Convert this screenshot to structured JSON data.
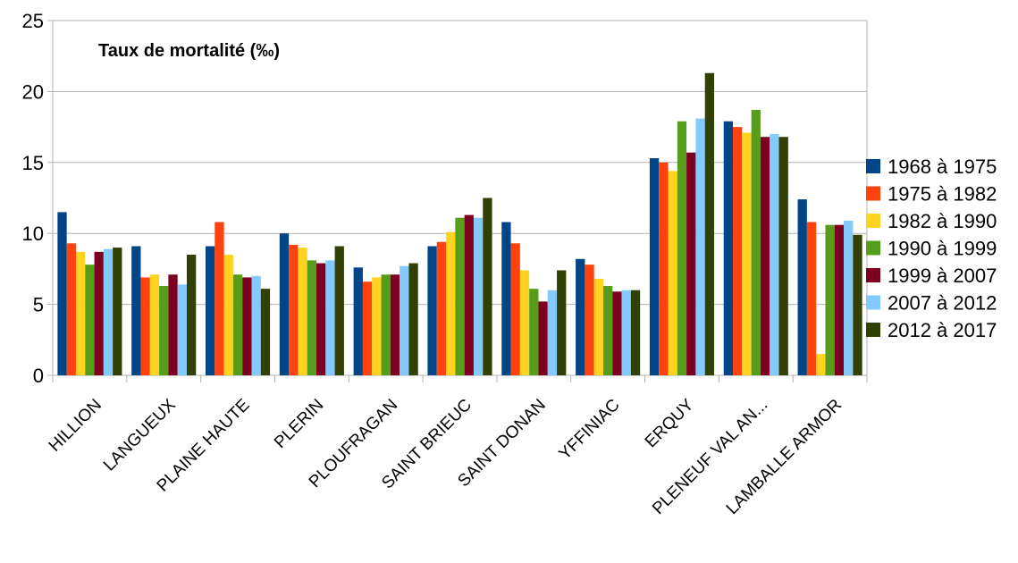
{
  "chart_data": {
    "type": "bar",
    "title": "Taux de mortalité (‰)",
    "xlabel": "",
    "ylabel": "",
    "ylim": [
      0,
      25
    ],
    "yticks": [
      0,
      5,
      10,
      15,
      20,
      25
    ],
    "grid": true,
    "legend_position": "right",
    "categories": [
      "HILLION",
      "LANGUEUX",
      "PLAINE HAUTE",
      "PLERIN",
      "PLOUFRAGAN",
      "SAINT BRIEUC",
      "SAINT DONAN",
      "YFFINIAC",
      "ERQUY",
      "PLENEUF VAL AN...",
      "LAMBALLE ARMOR"
    ],
    "series": [
      {
        "name": "1968 à 1975",
        "color": "#004586",
        "values": [
          11.5,
          9.1,
          9.1,
          10.0,
          7.6,
          9.1,
          10.8,
          8.2,
          15.3,
          17.9,
          12.4
        ]
      },
      {
        "name": "1975 à 1982",
        "color": "#ff420e",
        "values": [
          9.3,
          6.9,
          10.8,
          9.2,
          6.6,
          9.4,
          9.3,
          7.8,
          15.0,
          17.5,
          10.8
        ]
      },
      {
        "name": "1982 à 1990",
        "color": "#ffd320",
        "values": [
          8.7,
          7.1,
          8.5,
          9.0,
          6.9,
          10.1,
          7.4,
          6.8,
          14.4,
          17.1,
          1.5
        ]
      },
      {
        "name": "1990 à 1999",
        "color": "#579d1c",
        "values": [
          7.8,
          6.3,
          7.1,
          8.1,
          7.1,
          11.1,
          6.1,
          6.3,
          17.9,
          18.7,
          10.6
        ]
      },
      {
        "name": "1999 à 2007",
        "color": "#7e0021",
        "values": [
          8.7,
          7.1,
          6.9,
          7.9,
          7.1,
          11.3,
          5.2,
          5.9,
          15.7,
          16.8,
          10.6
        ]
      },
      {
        "name": "2007 à 2012",
        "color": "#83caff",
        "values": [
          8.9,
          6.4,
          7.0,
          8.1,
          7.7,
          11.1,
          6.0,
          6.0,
          18.1,
          17.0,
          10.9
        ]
      },
      {
        "name": "2012 à 2017",
        "color": "#314004",
        "values": [
          9.0,
          8.5,
          6.1,
          9.1,
          7.9,
          12.5,
          7.4,
          6.0,
          21.3,
          16.8,
          9.9
        ]
      }
    ]
  }
}
